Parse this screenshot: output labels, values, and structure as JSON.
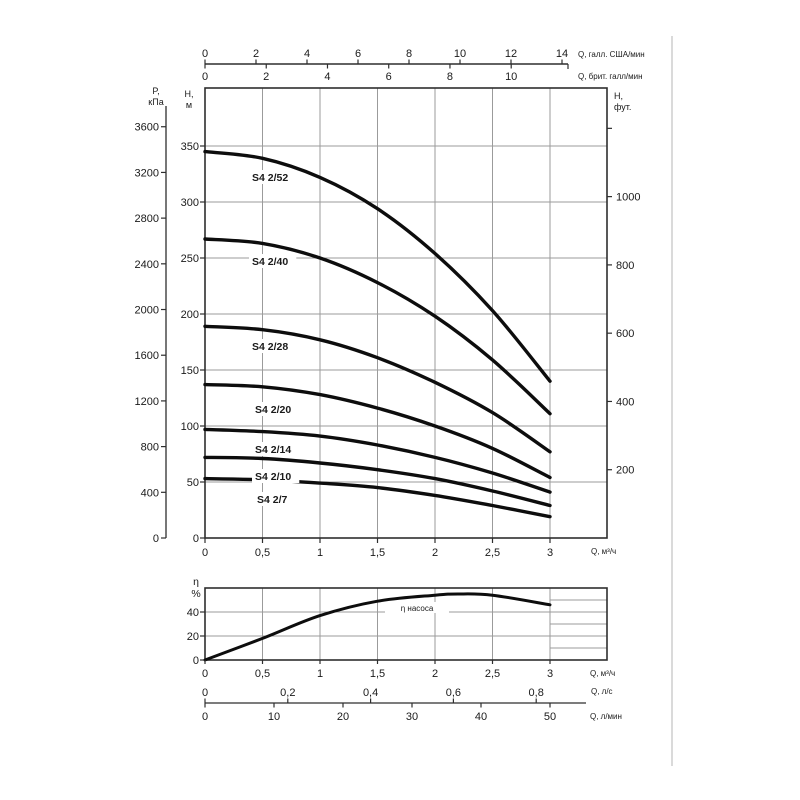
{
  "page": {
    "background": "#ffffff",
    "frame_line_color": "#dadada"
  },
  "colors": {
    "curve": "#0d0d0d",
    "grid": "#9b9b9b",
    "axis": "#2e2e2e",
    "text": "#1a1a1a"
  },
  "chart_data": [
    {
      "type": "line",
      "id": "head-capacity-curves",
      "x_m3h": {
        "unit": "Q, м³/ч",
        "tick_labels": [
          "0",
          "0,5",
          "1",
          "1,5",
          "2",
          "2,5",
          "3"
        ],
        "tick_values": [
          0,
          0.5,
          1,
          1.5,
          2,
          2.5,
          3
        ],
        "xlim": [
          0,
          3.5
        ]
      },
      "x_usgal": {
        "unit": "Q, галл. США/мин",
        "tick_values": [
          0,
          2,
          4,
          6,
          8,
          10,
          12,
          14
        ]
      },
      "x_britgal": {
        "unit": "Q, брит. галл/мин",
        "tick_values": [
          0,
          2,
          4,
          6,
          8,
          10
        ]
      },
      "y_m": {
        "unit_line1": "Н,",
        "unit_line2": "м",
        "tick_values": [
          0,
          50,
          100,
          150,
          200,
          250,
          300,
          350
        ],
        "ylim": [
          0,
          402
        ]
      },
      "y_kpa": {
        "unit_line1": "P,",
        "unit_line2": "кПа",
        "tick_values": [
          0,
          400,
          800,
          1200,
          1600,
          2000,
          2400,
          2800,
          3200,
          3600
        ]
      },
      "y_ft": {
        "unit_line1": "Н,",
        "unit_line2": "фут.",
        "tick_values": [
          200,
          400,
          600,
          800,
          1000
        ],
        "unlabeled_tick": 1200
      },
      "grid": true,
      "series": [
        {
          "name": "S4 2/52",
          "x": [
            0,
            0.5,
            1,
            1.5,
            2,
            2.5,
            3
          ],
          "head_m": [
            345,
            339,
            322,
            294,
            254,
            203,
            140
          ]
        },
        {
          "name": "S4 2/40",
          "x": [
            0,
            0.5,
            1,
            1.5,
            2,
            2.5,
            3
          ],
          "head_m": [
            267,
            263,
            250,
            228,
            198,
            159,
            111
          ]
        },
        {
          "name": "S4 2/28",
          "x": [
            0,
            0.5,
            1,
            1.5,
            2,
            2.5,
            3
          ],
          "head_m": [
            189,
            186,
            177,
            161,
            139,
            112,
            77
          ]
        },
        {
          "name": "S4 2/20",
          "x": [
            0,
            0.5,
            1,
            1.5,
            2,
            2.5,
            3
          ],
          "head_m": [
            137,
            135,
            128,
            116,
            100,
            80,
            54
          ]
        },
        {
          "name": "S4 2/14",
          "x": [
            0,
            0.5,
            1,
            1.5,
            2,
            2.5,
            3
          ],
          "head_m": [
            97,
            95,
            91,
            83,
            72,
            58,
            41
          ]
        },
        {
          "name": "S4 2/10",
          "x": [
            0,
            0.5,
            1,
            1.5,
            2,
            2.5,
            3
          ],
          "head_m": [
            72,
            71,
            67,
            61,
            53,
            42,
            29
          ]
        },
        {
          "name": "S4 2/7",
          "x": [
            0,
            0.5,
            1,
            1.5,
            2,
            2.5,
            3
          ],
          "head_m": [
            53,
            52,
            49,
            45,
            38,
            29,
            19
          ]
        }
      ]
    },
    {
      "type": "line",
      "id": "efficiency-curve",
      "curve_label": "η насоса",
      "y_pct": {
        "unit_line1": "η",
        "unit_line2": "%",
        "tick_values": [
          0,
          20,
          40
        ],
        "ylim": [
          0,
          60
        ]
      },
      "x_m3h": {
        "unit": "Q, м³/ч",
        "tick_labels": [
          "0",
          "0,5",
          "1",
          "1,5",
          "2",
          "2,5",
          "3"
        ],
        "tick_values": [
          0,
          0.5,
          1,
          1.5,
          2,
          2.5,
          3
        ],
        "xlim": [
          0,
          3.5
        ]
      },
      "x_ls": {
        "unit": "Q, л/с",
        "tick_labels": [
          "0",
          "0,2",
          "0,4",
          "0,6",
          "0,8"
        ],
        "tick_values": [
          0,
          0.2,
          0.4,
          0.6,
          0.8
        ]
      },
      "x_lmin": {
        "unit": "Q, л/мин",
        "tick_values": [
          0,
          10,
          20,
          30,
          40,
          50
        ]
      },
      "series": [
        {
          "name": "η насоса",
          "x": [
            0,
            0.5,
            1,
            1.5,
            2,
            2.2,
            2.5,
            3
          ],
          "efficiency_pct": [
            0,
            18,
            37,
            49,
            54,
            55,
            54,
            46
          ]
        }
      ]
    }
  ]
}
